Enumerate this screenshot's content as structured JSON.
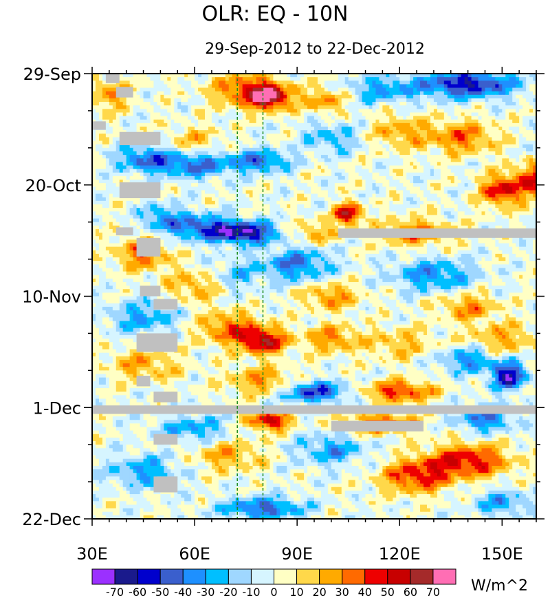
{
  "chart_data": {
    "type": "heatmap",
    "title": "OLR: EQ - 10N",
    "subtitle": "29-Sep-2012 to 22-Dec-2012",
    "xlabel": "",
    "ylabel": "",
    "xlim": [
      30,
      160
    ],
    "x_ticks": [
      {
        "value": 30,
        "label": "30E"
      },
      {
        "value": 60,
        "label": "60E"
      },
      {
        "value": 90,
        "label": "90E"
      },
      {
        "value": 120,
        "label": "120E"
      },
      {
        "value": 150,
        "label": "150E"
      }
    ],
    "ylim_days": [
      0,
      84
    ],
    "y_ticks": [
      {
        "value": 0,
        "label": "29-Sep"
      },
      {
        "value": 21,
        "label": "20-Oct"
      },
      {
        "value": 42,
        "label": "10-Nov"
      },
      {
        "value": 63,
        "label": "1-Dec"
      },
      {
        "value": 84,
        "label": "22-Dec"
      }
    ],
    "reference_lines_lon": [
      72.5,
      80
    ],
    "colorbar": {
      "unit": "W/m^2",
      "levels": [
        "-70",
        "-60",
        "-50",
        "-40",
        "-30",
        "-20",
        "-10",
        "0",
        "10",
        "20",
        "30",
        "40",
        "50",
        "60",
        "70"
      ],
      "colors": [
        "#9b30ff",
        "#1a1a8c",
        "#0000cd",
        "#3a5fcd",
        "#1e90ff",
        "#00bfff",
        "#9fd7ff",
        "#d6f5ff",
        "#ffffc4",
        "#ffd84a",
        "#ffaa00",
        "#ff6a00",
        "#ee0000",
        "#c80000",
        "#a52a2a",
        "#ff6eb4"
      ]
    },
    "anomaly_blobs": [
      {
        "lon": 82,
        "day": 4.5,
        "value": 65,
        "sx": 6,
        "sy": 2.2
      },
      {
        "lon": 75,
        "day": 3,
        "value": 40,
        "sx": 10,
        "sy": 3
      },
      {
        "lon": 98,
        "day": 5,
        "value": 30,
        "sx": 6,
        "sy": 2.5
      },
      {
        "lon": 35,
        "day": 4,
        "value": 28,
        "sx": 6,
        "sy": 3
      },
      {
        "lon": 140,
        "day": 2,
        "value": -60,
        "sx": 14,
        "sy": 2.5
      },
      {
        "lon": 115,
        "day": 3,
        "value": -30,
        "sx": 10,
        "sy": 2.5
      },
      {
        "lon": 138,
        "day": 12,
        "value": 35,
        "sx": 10,
        "sy": 3
      },
      {
        "lon": 120,
        "day": 11,
        "value": 25,
        "sx": 8,
        "sy": 3
      },
      {
        "lon": 100,
        "day": 12,
        "value": -25,
        "sx": 8,
        "sy": 3
      },
      {
        "lon": 60,
        "day": 13,
        "value": 20,
        "sx": 8,
        "sy": 3
      },
      {
        "lon": 60,
        "day": 17,
        "value": -45,
        "sx": 12,
        "sy": 2.5
      },
      {
        "lon": 80,
        "day": 16.5,
        "value": -40,
        "sx": 8,
        "sy": 2
      },
      {
        "lon": 45,
        "day": 16,
        "value": -35,
        "sx": 8,
        "sy": 2.5
      },
      {
        "lon": 150,
        "day": 22,
        "value": 50,
        "sx": 6,
        "sy": 3
      },
      {
        "lon": 160,
        "day": 20,
        "value": 45,
        "sx": 6,
        "sy": 3
      },
      {
        "lon": 105,
        "day": 26.5,
        "value": 60,
        "sx": 4,
        "sy": 2
      },
      {
        "lon": 75,
        "day": 30,
        "value": -65,
        "sx": 9,
        "sy": 2
      },
      {
        "lon": 62,
        "day": 29,
        "value": -45,
        "sx": 10,
        "sy": 2.5
      },
      {
        "lon": 50,
        "day": 27,
        "value": -30,
        "sx": 6,
        "sy": 2.5
      },
      {
        "lon": 95,
        "day": 30,
        "value": 25,
        "sx": 6,
        "sy": 2
      },
      {
        "lon": 125,
        "day": 30,
        "value": 35,
        "sx": 10,
        "sy": 2.5
      },
      {
        "lon": 45,
        "day": 34,
        "value": 35,
        "sx": 8,
        "sy": 3
      },
      {
        "lon": 60,
        "day": 40,
        "value": 25,
        "sx": 8,
        "sy": 3
      },
      {
        "lon": 90,
        "day": 36,
        "value": -40,
        "sx": 10,
        "sy": 3
      },
      {
        "lon": 72,
        "day": 38,
        "value": -20,
        "sx": 8,
        "sy": 3
      },
      {
        "lon": 130,
        "day": 38,
        "value": -35,
        "sx": 12,
        "sy": 3
      },
      {
        "lon": 100,
        "day": 42,
        "value": 30,
        "sx": 8,
        "sy": 2.5
      },
      {
        "lon": 140,
        "day": 44,
        "value": 30,
        "sx": 8,
        "sy": 2.5
      },
      {
        "lon": 45,
        "day": 46,
        "value": -30,
        "sx": 10,
        "sy": 3
      },
      {
        "lon": 80,
        "day": 50.5,
        "value": 55,
        "sx": 7,
        "sy": 2.5
      },
      {
        "lon": 70,
        "day": 48,
        "value": 35,
        "sx": 9,
        "sy": 3
      },
      {
        "lon": 100,
        "day": 50,
        "value": 30,
        "sx": 8,
        "sy": 2.5
      },
      {
        "lon": 120,
        "day": 51,
        "value": 20,
        "sx": 10,
        "sy": 3
      },
      {
        "lon": 150,
        "day": 50,
        "value": 25,
        "sx": 10,
        "sy": 3
      },
      {
        "lon": 45,
        "day": 55,
        "value": 25,
        "sx": 10,
        "sy": 3
      },
      {
        "lon": 152,
        "day": 57,
        "value": -65,
        "sx": 5,
        "sy": 2.5
      },
      {
        "lon": 140,
        "day": 54,
        "value": -35,
        "sx": 8,
        "sy": 2.5
      },
      {
        "lon": 120,
        "day": 60,
        "value": 45,
        "sx": 10,
        "sy": 2
      },
      {
        "lon": 80,
        "day": 58,
        "value": 30,
        "sx": 10,
        "sy": 2.5
      },
      {
        "lon": 95,
        "day": 60,
        "value": -50,
        "sx": 10,
        "sy": 2
      },
      {
        "lon": 82,
        "day": 65.5,
        "value": 55,
        "sx": 6,
        "sy": 1.8
      },
      {
        "lon": 115,
        "day": 66,
        "value": 40,
        "sx": 10,
        "sy": 2
      },
      {
        "lon": 145,
        "day": 65,
        "value": -40,
        "sx": 8,
        "sy": 2.5
      },
      {
        "lon": 60,
        "day": 67,
        "value": -30,
        "sx": 10,
        "sy": 2.5
      },
      {
        "lon": 140,
        "day": 73,
        "value": 50,
        "sx": 12,
        "sy": 3
      },
      {
        "lon": 125,
        "day": 76,
        "value": 45,
        "sx": 10,
        "sy": 3
      },
      {
        "lon": 100,
        "day": 71,
        "value": -30,
        "sx": 10,
        "sy": 3
      },
      {
        "lon": 70,
        "day": 72,
        "value": 25,
        "sx": 10,
        "sy": 3
      },
      {
        "lon": 45,
        "day": 75,
        "value": -30,
        "sx": 10,
        "sy": 3
      },
      {
        "lon": 80,
        "day": 82,
        "value": -45,
        "sx": 12,
        "sy": 2
      },
      {
        "lon": 150,
        "day": 81,
        "value": -30,
        "sx": 8,
        "sy": 2.5
      }
    ],
    "missing_regions": [
      {
        "lon": [
          30,
          160
        ],
        "day": [
          62.6,
          64.2
        ]
      },
      {
        "lon": 102,
        "to_lon": 160,
        "day": [
          29.2,
          31
        ]
      },
      {
        "lon": 100,
        "to_lon": 127,
        "day": [
          65.5,
          67.5
        ]
      },
      {
        "lon": [
          34,
          38
        ],
        "day": [
          0,
          1.8
        ]
      },
      {
        "lon": [
          37,
          42
        ],
        "day": [
          2.5,
          4.5
        ]
      },
      {
        "lon": [
          30,
          34
        ],
        "day": [
          9,
          10.6
        ]
      },
      {
        "lon": [
          38,
          50
        ],
        "day": [
          11,
          13.5
        ]
      },
      {
        "lon": [
          38,
          50
        ],
        "day": [
          20.5,
          23.5
        ]
      },
      {
        "lon": [
          37,
          42
        ],
        "day": [
          29,
          30.5
        ]
      },
      {
        "lon": [
          43,
          50
        ],
        "day": [
          31,
          34.5
        ]
      },
      {
        "lon": [
          44,
          50
        ],
        "day": [
          40,
          42
        ]
      },
      {
        "lon": [
          48,
          55
        ],
        "day": [
          42.5,
          44.5
        ]
      },
      {
        "lon": [
          43,
          55
        ],
        "day": [
          49,
          52.5
        ]
      },
      {
        "lon": [
          43,
          47
        ],
        "day": [
          57,
          59
        ]
      },
      {
        "lon": [
          48,
          55
        ],
        "day": [
          60,
          62
        ]
      },
      {
        "lon": [
          48,
          55
        ],
        "day": [
          68,
          70
        ]
      },
      {
        "lon": [
          48,
          55
        ],
        "day": [
          76,
          79
        ]
      }
    ]
  }
}
